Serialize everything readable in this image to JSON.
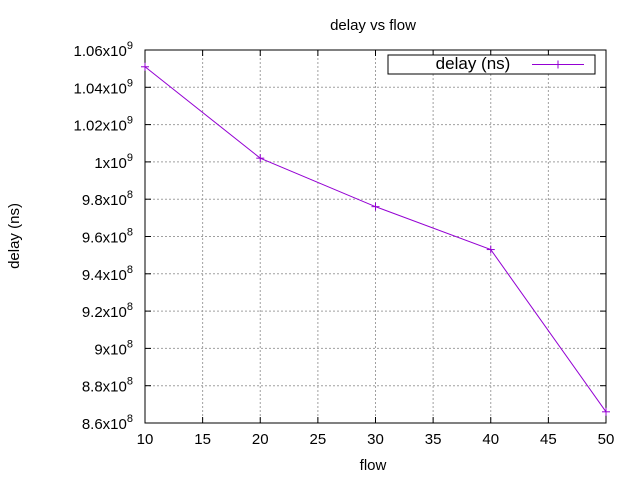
{
  "chart_data": {
    "type": "line",
    "title": "delay vs flow",
    "xlabel": "flow",
    "ylabel": "delay (ns)",
    "xlim": [
      10,
      50
    ],
    "ylim": [
      860000000,
      1060000000
    ],
    "x_ticks": [
      10,
      15,
      20,
      25,
      30,
      35,
      40,
      45,
      50
    ],
    "x_tick_labels": [
      "10",
      "15",
      "20",
      "25",
      "30",
      "35",
      "40",
      "45",
      "50"
    ],
    "y_ticks": [
      {
        "value": 860000000,
        "mantissa": "8.6x10",
        "exp": "8"
      },
      {
        "value": 880000000,
        "mantissa": "8.8x10",
        "exp": "8"
      },
      {
        "value": 900000000,
        "mantissa": "9x10",
        "exp": "8"
      },
      {
        "value": 920000000,
        "mantissa": "9.2x10",
        "exp": "8"
      },
      {
        "value": 940000000,
        "mantissa": "9.4x10",
        "exp": "8"
      },
      {
        "value": 960000000,
        "mantissa": "9.6x10",
        "exp": "8"
      },
      {
        "value": 980000000,
        "mantissa": "9.8x10",
        "exp": "8"
      },
      {
        "value": 1000000000,
        "mantissa": "1x10",
        "exp": "9"
      },
      {
        "value": 1020000000,
        "mantissa": "1.02x10",
        "exp": "9"
      },
      {
        "value": 1040000000,
        "mantissa": "1.04x10",
        "exp": "9"
      },
      {
        "value": 1060000000,
        "mantissa": "1.06x10",
        "exp": "9"
      }
    ],
    "grid": true,
    "legend": "top-right",
    "series": [
      {
        "name": "delay (ns)",
        "color": "#9400d3",
        "marker": "plus",
        "x": [
          10,
          20,
          30,
          40,
          50
        ],
        "values": [
          1051000000,
          1002000000,
          976000000,
          953000000,
          866000000
        ]
      }
    ]
  }
}
